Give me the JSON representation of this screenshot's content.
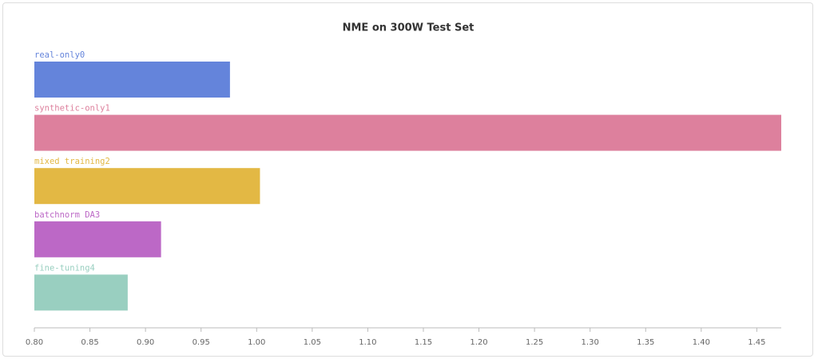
{
  "chart_data": {
    "type": "bar",
    "orientation": "horizontal",
    "title": "NME on 300W Test Set",
    "categories": [
      "real-only0",
      "synthetic-only1",
      "mixed training2",
      "batchnorm DA3",
      "fine-tuning4"
    ],
    "values": [
      0.976,
      1.472,
      1.003,
      0.914,
      0.884
    ],
    "colors": [
      "#6484db",
      "#dd809d",
      "#e3b844",
      "#bc68c6",
      "#99cfc0"
    ],
    "xlim": [
      0.8,
      1.472
    ],
    "xticks": [
      {
        "value": 0.8,
        "label": "0.80"
      },
      0.85,
      {
        "value": 0.9,
        "label": "0.90"
      },
      0.95,
      {
        "value": 1.0,
        "label": "1.00"
      },
      1.05,
      {
        "value": 1.1,
        "label": "1.10"
      },
      1.15,
      {
        "value": 1.2,
        "label": "1.20"
      },
      1.25,
      {
        "value": 1.3,
        "label": "1.30"
      },
      1.35,
      {
        "value": 1.4,
        "label": "1.40"
      },
      1.45
    ]
  }
}
